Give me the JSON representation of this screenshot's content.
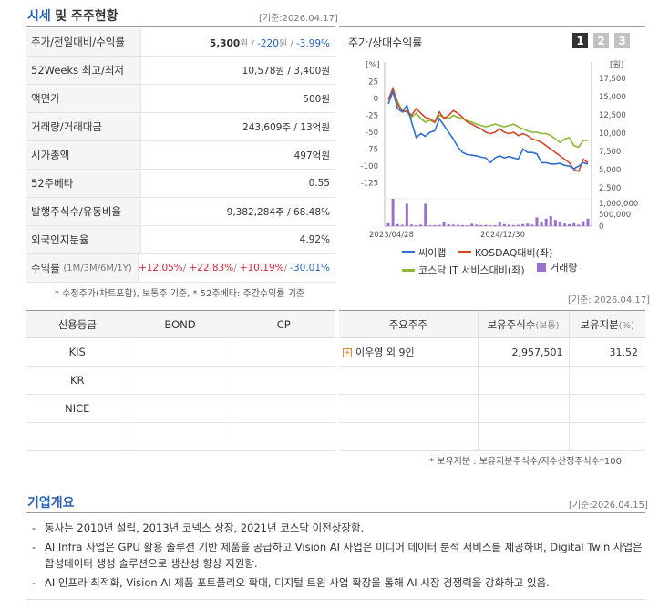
{
  "section1": {
    "title_part1": "시세",
    "title_part2": "및 주주현황",
    "date": "[기준:2026.04.17]"
  },
  "price_table": {
    "row1": {
      "label": "주가/전일대비/수익률",
      "price": "5,300",
      "price_unit": "원",
      "sep1": " / ",
      "change": "-220",
      "change_unit": "원",
      "sep2": " / ",
      "rate": "-3.99%"
    },
    "row2": {
      "label": "52Weeks 최고/최저",
      "value": "10,578원 / 3,400원"
    },
    "row3": {
      "label": "액면가",
      "value": "500원"
    },
    "row4": {
      "label": "거래량/거래대금",
      "value": "243,609주 / 13억원"
    },
    "row5": {
      "label": "시가총액",
      "value": "497억원"
    },
    "row6": {
      "label": "52주베타",
      "value": "0.55"
    },
    "row7": {
      "label": "발행주식수/유동비율",
      "value": "9,382,284주 / 68.48%"
    },
    "row8": {
      "label": "외국인지분율",
      "value": "4.92%"
    },
    "row9": {
      "label": "수익률",
      "label_sub": "(1M/3M/6M/1Y)",
      "r1": "+12.05%",
      "r2": "+22.83%",
      "r3": "+10.19%",
      "r4": "-30.01%",
      "sep": "/ "
    }
  },
  "note1": "* 수정주가(차트포함), 보통주 기준, * 52주베타: 주간수익률 기준",
  "chart": {
    "title": "주가/상대수익률",
    "buttons": [
      "1",
      "2",
      "3"
    ],
    "legend": {
      "s1": "씨이랩",
      "s2": "KOSDAQ대비(좌)",
      "s3": "코스닥 IT 서비스대비(좌)",
      "s4": "거래량"
    }
  },
  "chart_data": {
    "type": "line",
    "title": "주가/상대수익률",
    "left_axis_unit": "[%]",
    "right_axis_unit": "[원]",
    "left_ticks": [
      "25",
      "0",
      "-25",
      "-50",
      "-75",
      "-100",
      "-125"
    ],
    "left_ylim": [
      -135,
      35
    ],
    "right_ticks": [
      "17,500",
      "15,000",
      "12,500",
      "10,000",
      "7,500",
      "5,000",
      "2,500"
    ],
    "volume_ticks": [
      "1,000,000",
      "500,000",
      "0"
    ],
    "x_labels": [
      "2023/04/28",
      "2024/12/30"
    ],
    "colors": {
      "price": "#2f6fcf",
      "kosdaq": "#d04a2a",
      "it": "#8bb82f",
      "volume": "#9b6fd1"
    },
    "series": [
      {
        "name": "씨이랩",
        "values": [
          -8,
          10,
          -15,
          -20,
          -10,
          -35,
          -58,
          -52,
          -56,
          -50,
          -48,
          -30,
          -40,
          -50,
          -60,
          -72,
          -80,
          -83,
          -84,
          -85,
          -87,
          -88,
          -95,
          -88,
          -85,
          -88,
          -86,
          -88,
          -90,
          -75,
          -80,
          -80,
          -82,
          -95,
          -95,
          -97,
          -97,
          -96,
          -99,
          -100,
          -104,
          -100,
          -95,
          -97
        ]
      },
      {
        "name": "KOSDAQ대비(좌)",
        "values": [
          -2,
          15,
          -8,
          -20,
          -18,
          -25,
          -15,
          -22,
          -28,
          -30,
          -35,
          -20,
          -30,
          -25,
          -18,
          -22,
          -28,
          -35,
          -38,
          -42,
          -45,
          -50,
          -52,
          -50,
          -45,
          -50,
          -52,
          -50,
          -55,
          -52,
          -55,
          -60,
          -62,
          -65,
          -70,
          -75,
          -80,
          -85,
          -90,
          -95,
          -105,
          -108,
          -90,
          -95
        ]
      },
      {
        "name": "코스닥 IT 서비스대비(좌)",
        "values": [
          0,
          10,
          -5,
          -18,
          -20,
          -28,
          -22,
          -30,
          -35,
          -32,
          -36,
          -25,
          -28,
          -30,
          -25,
          -28,
          -30,
          -33,
          -35,
          -38,
          -40,
          -42,
          -40,
          -38,
          -40,
          -42,
          -40,
          -38,
          -42,
          -45,
          -48,
          -50,
          -50,
          -52,
          -52,
          -55,
          -60,
          -65,
          -60,
          -58,
          -70,
          -72,
          -62,
          -62
        ]
      }
    ],
    "volume_series": {
      "name": "거래량",
      "values": [
        120000,
        1100000,
        80000,
        50000,
        900000,
        60000,
        40000,
        60000,
        900000,
        30000,
        40000,
        50000,
        150000,
        80000,
        60000,
        50000,
        40000,
        30000,
        100000,
        60000,
        40000,
        50000,
        30000,
        40000,
        150000,
        80000,
        60000,
        40000,
        50000,
        80000,
        100000,
        60000,
        350000,
        150000,
        300000,
        400000,
        250000,
        150000,
        100000,
        80000,
        120000,
        60000,
        200000,
        300000
      ]
    }
  },
  "credit_table": {
    "headers": [
      "신용등급",
      "BOND",
      "CP"
    ],
    "rows": [
      [
        "KIS",
        "",
        ""
      ],
      [
        "KR",
        "",
        ""
      ],
      [
        "NICE",
        "",
        ""
      ],
      [
        "",
        "",
        ""
      ]
    ]
  },
  "shareholder_table": {
    "date": "[기준: 2026.04.17]",
    "headers": [
      "주요주주",
      "보유주식수",
      "(보통)",
      "보유지분",
      "(%)"
    ],
    "rows": [
      {
        "name": "이우영 외 9인",
        "shares": "2,957,501",
        "pct": "31.52"
      }
    ]
  },
  "note2": "* 보유지분 : 보유지분주식수/지수산정주식수*100",
  "section2": {
    "title": "기업개요",
    "date": "[기준:2026.04.15]",
    "items": [
      "동사는 2010년 설립, 2013년 코넥스 상장, 2021년 코스닥 이전상장함.",
      "AI Infra 사업은 GPU 활용 솔루션 기반 제품을 공급하고 Vision AI 사업은 미디어 데이터 분석 서비스를 제공하며, Digital Twin 사업은 합성데이터 생성 솔루션으로 생산성 향상 지원함.",
      "AI 인프라 최적화, Vision AI 제품 포트폴리오 확대, 디지털 트윈 사업 확장을 통해 AI 시장 경쟁력을 강화하고 있음."
    ]
  }
}
